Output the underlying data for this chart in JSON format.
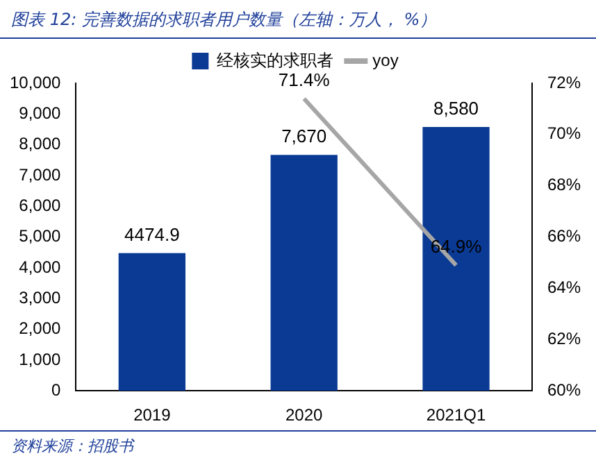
{
  "chart_data": {
    "type": "bar",
    "title": "图表 12: 完善数据的求职者用户数量（左轴：万人， %）",
    "categories": [
      "2019",
      "2020",
      "2021Q1"
    ],
    "series": [
      {
        "name": "经核实的求职者",
        "color": "#0a3a94",
        "values": [
          4474.9,
          7670,
          8580
        ],
        "value_labels": [
          "4474.9",
          "7,670",
          "8,580"
        ]
      },
      {
        "name": "yoy",
        "type": "line",
        "axis": "y2",
        "color": "#a6a6a6",
        "values": [
          null,
          71.4,
          64.9
        ],
        "value_labels": [
          null,
          "71.4%",
          "64.9%"
        ]
      }
    ],
    "ylim": [
      0,
      10000
    ],
    "yticks": [
      0,
      {
        "value": 1000,
        "label": "1,000"
      },
      {
        "value": 2000,
        "label": "2,000"
      },
      {
        "value": 3000,
        "label": "3,000"
      },
      {
        "value": 4000,
        "label": "4,000"
      },
      {
        "value": 5000,
        "label": "5,000"
      },
      {
        "value": 6000,
        "label": "6,000"
      },
      {
        "value": 7000,
        "label": "7,000"
      },
      {
        "value": 8000,
        "label": "8,000"
      },
      {
        "value": 9000,
        "label": "9,000"
      },
      {
        "value": 10000,
        "label": "10,000"
      }
    ],
    "y2lim": [
      60,
      72
    ],
    "y2ticks": [
      {
        "value": 60,
        "label": "60%"
      },
      {
        "value": 62,
        "label": "62%"
      },
      {
        "value": 64,
        "label": "64%"
      },
      {
        "value": 66,
        "label": "66%"
      },
      {
        "value": 68,
        "label": "68%"
      },
      {
        "value": 70,
        "label": "70%"
      },
      {
        "value": 72,
        "label": "72%"
      }
    ],
    "legend": "top",
    "grid": false,
    "marker": "none",
    "annotations": [
      "资料来源：招股书"
    ]
  }
}
